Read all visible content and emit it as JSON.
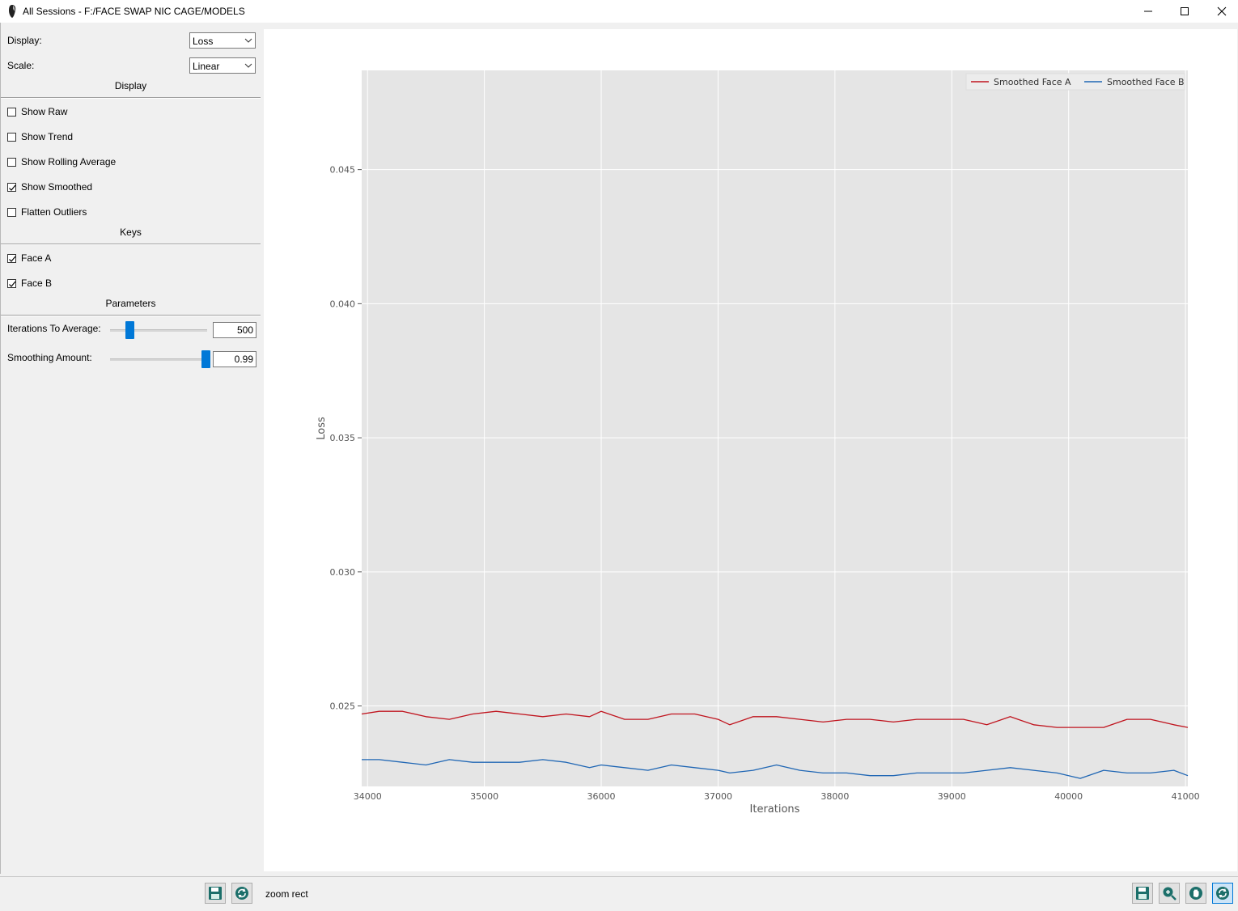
{
  "window": {
    "title": "All Sessions - F:/FACE SWAP NIC CAGE/MODELS",
    "controls": [
      "minimize-icon",
      "maximize-icon",
      "close-icon"
    ]
  },
  "sidebar": {
    "display_label": "Display:",
    "display_value": "Loss",
    "scale_label": "Scale:",
    "scale_value": "Linear",
    "display_section": "Display",
    "options": [
      {
        "label": "Show Raw",
        "checked": false
      },
      {
        "label": "Show Trend",
        "checked": false
      },
      {
        "label": "Show Rolling Average",
        "checked": false
      },
      {
        "label": "Show Smoothed",
        "checked": true
      },
      {
        "label": "Flatten Outliers",
        "checked": false
      }
    ],
    "keys_section": "Keys",
    "keys": [
      {
        "label": "Face A",
        "checked": true
      },
      {
        "label": "Face B",
        "checked": true
      }
    ],
    "params_section": "Parameters",
    "iterations_label": "Iterations To Average:",
    "iterations_value": "500",
    "iterations_slider_fraction": 0.2,
    "smoothing_label": "Smoothing Amount:",
    "smoothing_value": "0.99",
    "smoothing_slider_fraction": 0.99
  },
  "toolbar": {
    "left_icons": [
      "save-icon",
      "refresh-icon"
    ],
    "status": "zoom rect",
    "right_icons": [
      "save-icon",
      "zoom-icon",
      "pan-icon",
      "reload-icon"
    ]
  },
  "chart_data": {
    "type": "line",
    "title": "",
    "xlabel": "Iterations",
    "ylabel": "Loss",
    "xlim": [
      33950,
      41020
    ],
    "ylim": [
      0.022,
      0.0487
    ],
    "xticks": [
      34000,
      35000,
      36000,
      37000,
      38000,
      39000,
      40000,
      41000
    ],
    "yticks": [
      "0.025",
      "0.030",
      "0.035",
      "0.040",
      "0.045"
    ],
    "ytick_values": [
      0.025,
      0.03,
      0.035,
      0.04,
      0.045
    ],
    "grid": true,
    "legend_position": "top-right",
    "series": [
      {
        "name": "Smoothed Face A",
        "color": "#c0141e",
        "x": [
          33950,
          34100,
          34300,
          34500,
          34700,
          34900,
          35100,
          35300,
          35500,
          35700,
          35900,
          36000,
          36200,
          36400,
          36600,
          36800,
          37000,
          37100,
          37300,
          37500,
          37700,
          37900,
          38100,
          38300,
          38500,
          38700,
          38900,
          39100,
          39300,
          39500,
          39700,
          39900,
          40100,
          40300,
          40500,
          40700,
          40900,
          41020
        ],
        "values": [
          0.0247,
          0.0248,
          0.0248,
          0.0246,
          0.0245,
          0.0247,
          0.0248,
          0.0247,
          0.0246,
          0.0247,
          0.0246,
          0.0248,
          0.0245,
          0.0245,
          0.0247,
          0.0247,
          0.0245,
          0.0243,
          0.0246,
          0.0246,
          0.0245,
          0.0244,
          0.0245,
          0.0245,
          0.0244,
          0.0245,
          0.0245,
          0.0245,
          0.0243,
          0.0246,
          0.0243,
          0.0242,
          0.0242,
          0.0242,
          0.0245,
          0.0245,
          0.0243,
          0.0242
        ]
      },
      {
        "name": "Smoothed Face B",
        "color": "#1f66b4",
        "x": [
          33950,
          34100,
          34300,
          34500,
          34700,
          34900,
          35100,
          35300,
          35500,
          35700,
          35900,
          36000,
          36200,
          36400,
          36600,
          36800,
          37000,
          37100,
          37300,
          37500,
          37700,
          37900,
          38100,
          38300,
          38500,
          38700,
          38900,
          39100,
          39300,
          39500,
          39700,
          39900,
          40100,
          40300,
          40500,
          40700,
          40900,
          41020
        ],
        "values": [
          0.023,
          0.023,
          0.0229,
          0.0228,
          0.023,
          0.0229,
          0.0229,
          0.0229,
          0.023,
          0.0229,
          0.0227,
          0.0228,
          0.0227,
          0.0226,
          0.0228,
          0.0227,
          0.0226,
          0.0225,
          0.0226,
          0.0228,
          0.0226,
          0.0225,
          0.0225,
          0.0224,
          0.0224,
          0.0225,
          0.0225,
          0.0225,
          0.0226,
          0.0227,
          0.0226,
          0.0225,
          0.0223,
          0.0226,
          0.0225,
          0.0225,
          0.0226,
          0.0224
        ]
      }
    ]
  }
}
